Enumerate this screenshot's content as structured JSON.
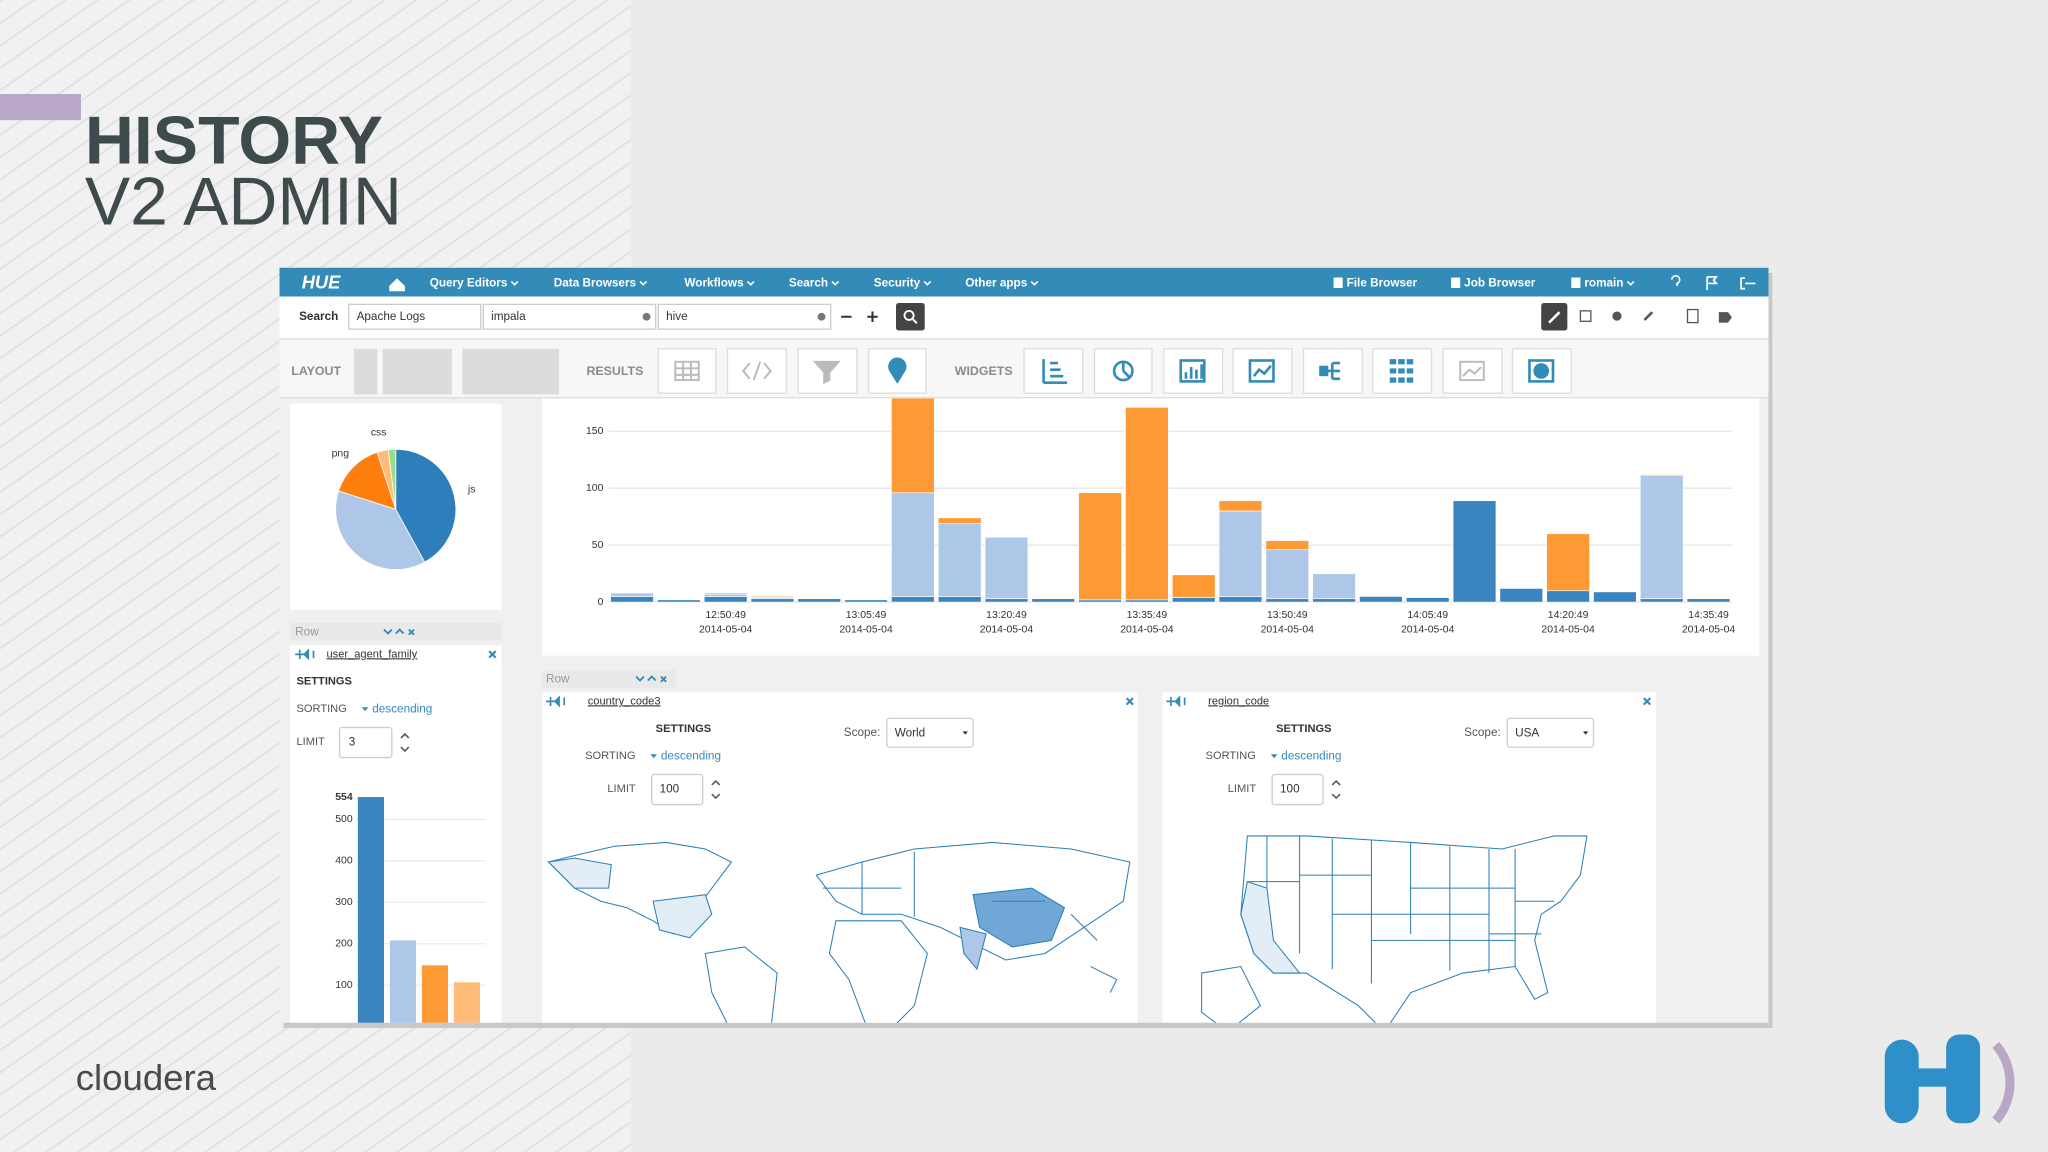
{
  "slide": {
    "title_line1": "HISTORY",
    "title_line2": "V2 ADMIN",
    "footer_brand": "cloudera"
  },
  "navbar": {
    "logo": "HUE",
    "menus": [
      "Query Editors",
      "Data Browsers",
      "Workflows",
      "Search",
      "Security",
      "Other apps"
    ],
    "right_items": [
      "File Browser",
      "Job Browser",
      "romain"
    ]
  },
  "search_bar": {
    "label": "Search",
    "collection": "Apache Logs",
    "fields": [
      "impala",
      "hive"
    ]
  },
  "toolbar": {
    "sections": [
      "LAYOUT",
      "RESULTS",
      "WIDGETS"
    ]
  },
  "pie_chart": {
    "type": "pie",
    "categories": [
      "js",
      null,
      "png",
      "css",
      null
    ],
    "values": [
      42,
      38,
      15,
      3,
      2
    ],
    "colors": [
      "#2f7ebc",
      "#aec7e8",
      "#ff7f0e",
      "#ffbb78",
      "#98df8a"
    ]
  },
  "facet_panels": [
    {
      "row_label": "Row",
      "field": "user_agent_family",
      "settings": "SETTINGS",
      "sorting_label": "SORTING",
      "sorting": "descending",
      "limit_label": "LIMIT",
      "limit": 3
    },
    {
      "row_label": "Row",
      "field": "country_code3",
      "settings": "SETTINGS",
      "scope_label": "Scope:",
      "scope": "World",
      "sorting_label": "SORTING",
      "sorting": "descending",
      "limit_label": "LIMIT",
      "limit": 100
    },
    {
      "field": "region_code",
      "settings": "SETTINGS",
      "scope_label": "Scope:",
      "scope": "USA",
      "sorting_label": "SORTING",
      "sorting": "descending",
      "limit_label": "LIMIT",
      "limit": 100
    }
  ],
  "timeline_chart": {
    "type": "bar",
    "stacked": true,
    "categories": [
      null,
      null,
      "12:50:49",
      null,
      null,
      "13:05:49",
      null,
      null,
      "13:20:49",
      null,
      null,
      "13:35:49",
      null,
      null,
      "13:50:49",
      null,
      null,
      "14:05:49",
      null,
      null,
      "14:20:49",
      null,
      null,
      "14:35:49"
    ],
    "dates": [
      null,
      null,
      "2014-05-04",
      null,
      null,
      "2014-05-04",
      null,
      null,
      "2014-05-04",
      null,
      null,
      "2014-05-04",
      null,
      null,
      "2014-05-04",
      null,
      null,
      "2014-05-04",
      null,
      null,
      "2014-05-04",
      null,
      null,
      "2014-05-04"
    ],
    "series": [
      {
        "color": "#3a84c0",
        "values": [
          5,
          2,
          5,
          3,
          3,
          2,
          5,
          5,
          3,
          3,
          2,
          2,
          4,
          5,
          3,
          3,
          5,
          4,
          89,
          12,
          10,
          9,
          3,
          3
        ]
      },
      {
        "color": "#aec7e8",
        "values": [
          3,
          0,
          2,
          1,
          0,
          0,
          91,
          64,
          54,
          0,
          0,
          0,
          0,
          75,
          43,
          22,
          0,
          0,
          0,
          0,
          0,
          0,
          108,
          0
        ]
      },
      {
        "color": "#ff9933",
        "values": [
          0,
          0,
          1,
          1,
          0,
          0,
          83,
          5,
          0,
          0,
          94,
          169,
          20,
          9,
          8,
          0,
          0,
          0,
          0,
          0,
          50,
          0,
          1,
          0
        ]
      }
    ],
    "ylim": [
      0,
      180
    ],
    "yticks": [
      0,
      50,
      100,
      150
    ],
    "grid": true
  },
  "bar_chart": {
    "type": "bar",
    "values": [
      554,
      208,
      148,
      107
    ],
    "colors": [
      "#3a84c0",
      "#aec7e8",
      "#ff9933",
      "#ffbb78"
    ],
    "ylim": [
      0,
      580
    ],
    "yticks": [
      100,
      200,
      300,
      400,
      500
    ],
    "grid": true
  }
}
